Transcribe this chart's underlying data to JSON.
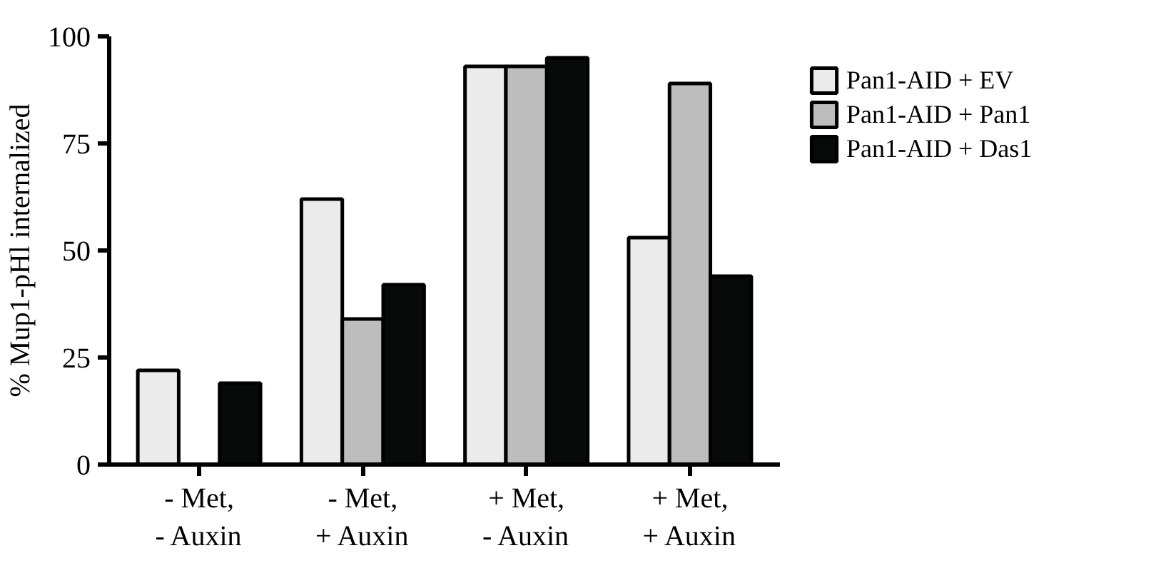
{
  "chart_data": {
    "type": "bar",
    "ylabel": "% Mup1-pHl internalized",
    "categories": [
      "- Met,\n- Auxin",
      "- Met,\n+ Auxin",
      "+ Met,\n- Auxin",
      "+ Met,\n+ Auxin"
    ],
    "series": [
      {
        "name": "Pan1-AID + EV",
        "color": "#ebebeb",
        "values": [
          22,
          62,
          93,
          53
        ]
      },
      {
        "name": "Pan1-AID + Pan1",
        "color": "#bdbdbd",
        "values": [
          null,
          34,
          93,
          89
        ]
      },
      {
        "name": "Pan1-AID + Das1",
        "color": "#080a0a",
        "values": [
          19,
          42,
          95,
          44
        ]
      }
    ],
    "ylim": [
      0,
      100
    ],
    "yticks": [
      0,
      25,
      50,
      75,
      100
    ],
    "grid": false,
    "legend": "top right"
  }
}
